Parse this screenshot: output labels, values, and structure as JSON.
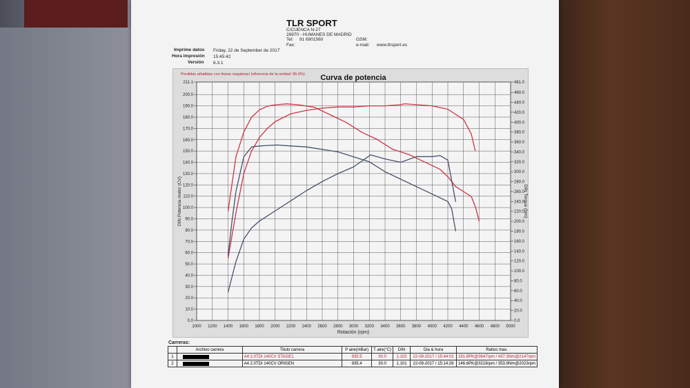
{
  "header": {
    "company": "TLR SPORT",
    "address1": "C/CUENCA N-27",
    "address2": "28970 - HUMANES DE MADRID",
    "tel_label": "Tel:",
    "tel": "91 6901560",
    "fax_label": "Fax:",
    "gsm_label": "GSM:",
    "email_label": "e-mail:",
    "website": "www.tlrsport.es"
  },
  "meta": {
    "print_date_label": "Imprime datos",
    "print_date": "Friday, 22 de September de 2017",
    "print_time_label": "Hora impresión",
    "print_time": "15:45:42",
    "version_label": "Versión",
    "version": "6.3.1"
  },
  "chart_data": {
    "type": "line",
    "title": "Curva de potencia",
    "subtitle": "Perdidas añadidas con lineas negativas! (eficiencia de la unidad: 95.0%)",
    "xlabel": "Rotación (rpm)",
    "ylabel": "DIN Potencia motor (CV)",
    "y2label": "DIN Torque (Nm)",
    "xlim": [
      1000,
      5000
    ],
    "ylim": [
      0,
      211.1
    ],
    "y2lim": [
      0,
      481
    ],
    "grid": true,
    "x_ticks": [
      "1000",
      "1200",
      "1400",
      "1600",
      "1800",
      "2000",
      "2200",
      "2400",
      "2600",
      "2800",
      "3000",
      "3200",
      "3400",
      "3600",
      "3800",
      "4000",
      "4200",
      "4400",
      "4600",
      "4800",
      "5000"
    ],
    "y_ticks": [
      "0.0",
      "10.0",
      "20.0",
      "30.0",
      "40.0",
      "50.0",
      "60.0",
      "70.0",
      "80.0",
      "90.0",
      "100.0",
      "110.0",
      "120.0",
      "130.0",
      "140.0",
      "150.0",
      "160.0",
      "170.0",
      "180.0",
      "190.0",
      "200.0",
      "211.1"
    ],
    "y2_ticks": [
      "0.0",
      "20.0",
      "40.0",
      "60.0",
      "80.0",
      "100.0",
      "120.0",
      "140.0",
      "160.0",
      "180.0",
      "200.0",
      "220.0",
      "240.0",
      "260.0",
      "280.0",
      "300.0",
      "320.0",
      "340.0",
      "360.0",
      "380.0",
      "400.0",
      "420.0",
      "440.0",
      "460.0",
      "481.0"
    ],
    "series": [
      {
        "name": "A4 2.0TDI 140CV STAGE1 power",
        "color": "#cc3344",
        "axis": "left",
        "x": [
          1400,
          1500,
          1600,
          1700,
          1800,
          1900,
          2000,
          2200,
          2400,
          2600,
          2800,
          3000,
          3200,
          3400,
          3600,
          3647,
          3800,
          4000,
          4200,
          4400,
          4500,
          4550
        ],
        "y": [
          55,
          95,
          130,
          150,
          162,
          170,
          176,
          183,
          186,
          188,
          189,
          189,
          190,
          190,
          191,
          191.8,
          191,
          190,
          187,
          178,
          165,
          150
        ]
      },
      {
        "name": "A4 2.0TDI 140CV STAGE1 torque",
        "color": "#cc3344",
        "axis": "right",
        "x": [
          1400,
          1500,
          1600,
          1700,
          1800,
          1900,
          2000,
          2147,
          2300,
          2500,
          2700,
          2900,
          3100,
          3300,
          3500,
          3700,
          3900,
          4100,
          4200,
          4300,
          4400,
          4500,
          4550,
          4600
        ],
        "y": [
          220,
          330,
          380,
          410,
          425,
          432,
          435,
          437,
          435,
          430,
          415,
          400,
          380,
          365,
          345,
          335,
          320,
          305,
          290,
          270,
          260,
          250,
          230,
          200
        ]
      },
      {
        "name": "A4 2.0TDI 140CV ORIGEN power",
        "color": "#45506a",
        "axis": "left",
        "x": [
          1400,
          1500,
          1600,
          1700,
          1800,
          2000,
          2200,
          2400,
          2600,
          2800,
          3000,
          3218,
          3400,
          3600,
          3800,
          4000,
          4100,
          4200,
          4300
        ],
        "y": [
          25,
          52,
          72,
          82,
          88,
          97,
          106,
          115,
          123,
          130,
          136,
          146.6,
          143,
          140,
          145,
          145,
          146,
          142,
          105
        ]
      },
      {
        "name": "A4 2.0TDI 140CV ORIGEN torque",
        "color": "#45506a",
        "axis": "right",
        "x": [
          1400,
          1450,
          1500,
          1600,
          1700,
          1800,
          1900,
          2023,
          2200,
          2400,
          2600,
          2800,
          3000,
          3200,
          3400,
          3600,
          3800,
          4000,
          4200,
          4250,
          4300
        ],
        "y": [
          130,
          200,
          260,
          330,
          350,
          352,
          353,
          353.9,
          352,
          350,
          345,
          340,
          330,
          320,
          300,
          285,
          270,
          255,
          240,
          225,
          180
        ]
      }
    ]
  },
  "table": {
    "section_label": "Carreras:",
    "headers": [
      "Archivo carrera",
      "Titulo carrera",
      "P aire(mBar)",
      "T aire(°C)",
      "DIN",
      "Dia & hora",
      "Ratios max."
    ],
    "rows": [
      {
        "n": "1",
        "title": "A4 2.0TDI 140CV STAGE1",
        "p": "935.5",
        "t": "30.0",
        "din": "1.102",
        "date": "22-09-2017 / 15:44:02",
        "ratio": "191.8PK@3647rpm / 437.3Nm@2147rpm",
        "color": "#b01e2e"
      },
      {
        "n": "2",
        "title": "A4 2.0TDI 140CV ORIGEN",
        "p": "935.4",
        "t": "30.0",
        "din": "1.101",
        "date": "22-09-2017 / 15:14:26",
        "ratio": "146.6PK@3218rpm / 353.9Nm@2023rpm",
        "color": "#333333"
      }
    ]
  },
  "colors": {
    "power_stage1": "#cc3344",
    "power_origen": "#45506a",
    "grid": "#444444"
  }
}
